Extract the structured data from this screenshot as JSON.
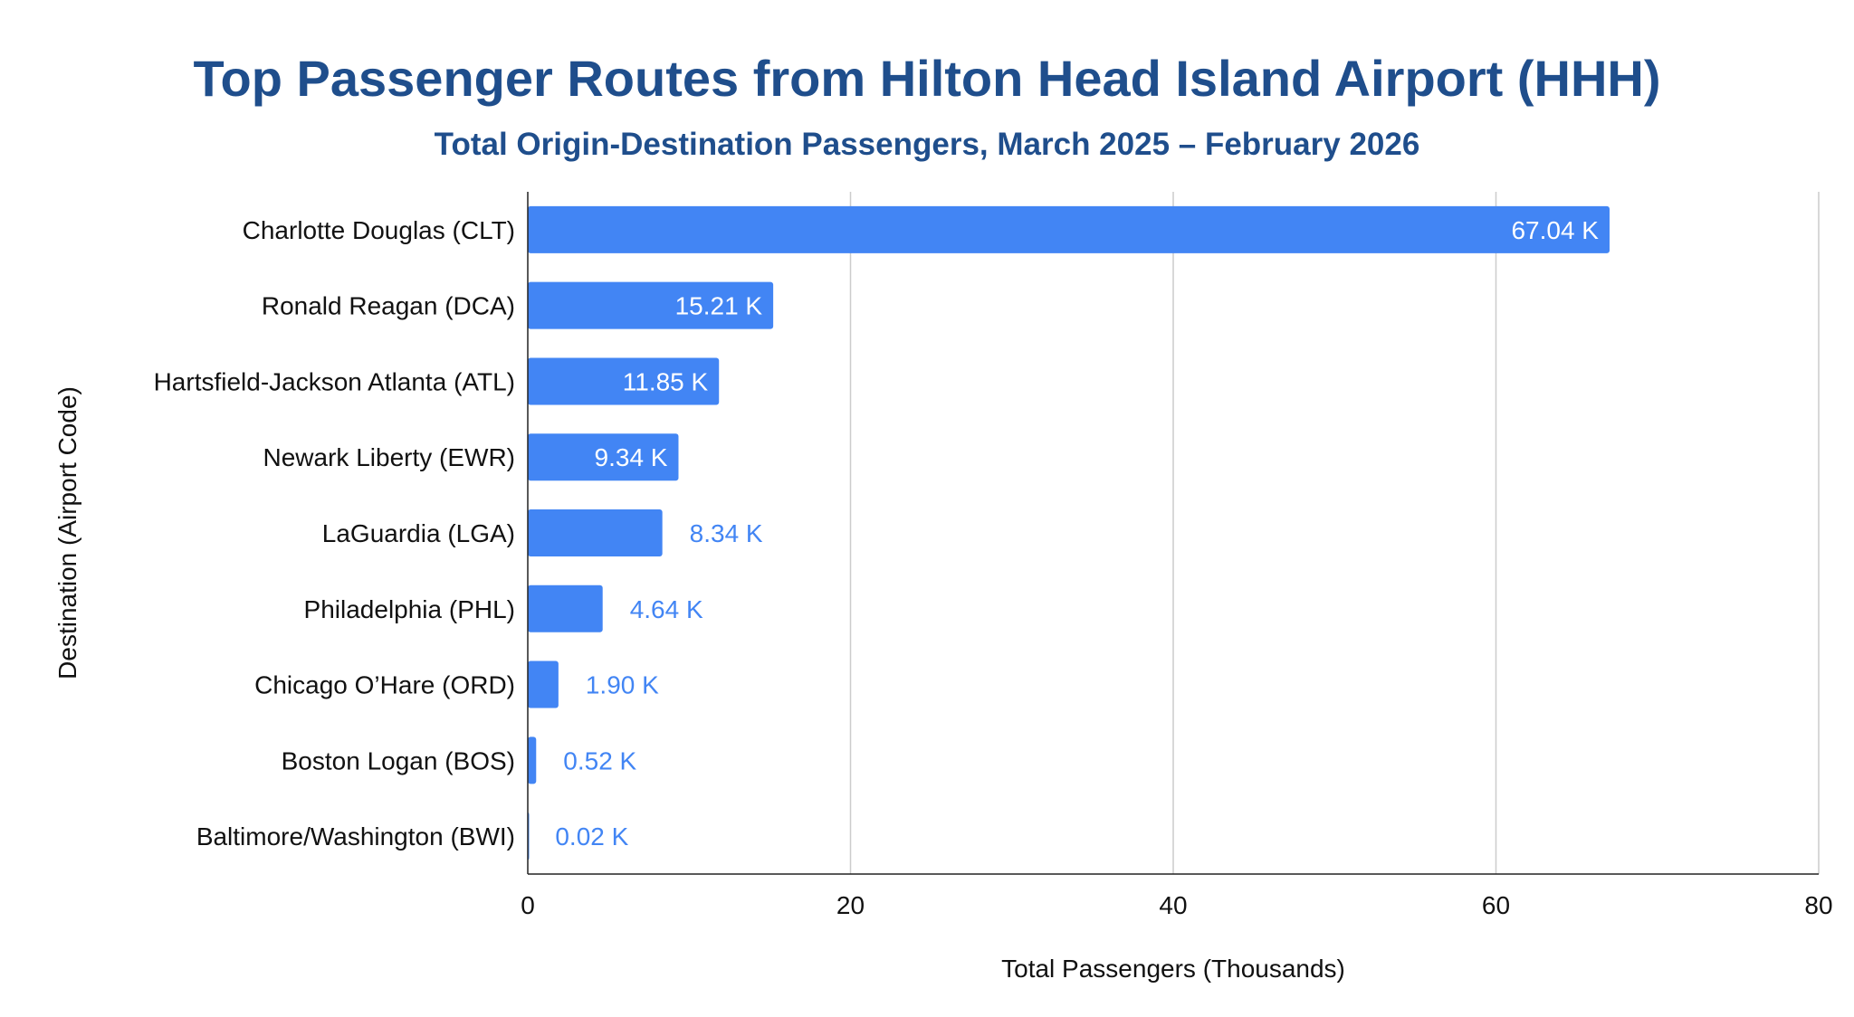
{
  "chart_data": {
    "type": "bar",
    "orientation": "horizontal",
    "title": "Top Passenger Routes from Hilton Head Island Airport (HHH)",
    "subtitle": "Total Origin-Destination Passengers, March 2025 – February 2026",
    "xlabel": "Total Passengers (Thousands)",
    "ylabel": "Destination (Airport Code)",
    "xlim": [
      0,
      80
    ],
    "xticks": [
      0,
      20,
      40,
      60,
      80
    ],
    "grid": "vertical",
    "bar_color": "#4285f4",
    "categories": [
      "Charlotte Douglas (CLT)",
      "Ronald Reagan (DCA)",
      "Hartsfield-Jackson Atlanta (ATL)",
      "Newark Liberty (EWR)",
      "LaGuardia (LGA)",
      "Philadelphia (PHL)",
      "Chicago O’Hare (ORD)",
      "Boston Logan (BOS)",
      "Baltimore/Washington (BWI)"
    ],
    "values": [
      67.04,
      15.21,
      11.85,
      9.34,
      8.34,
      4.64,
      1.9,
      0.52,
      0.02
    ],
    "data_labels": [
      "67.04 K",
      "15.21 K",
      "11.85 K",
      "9.34 K",
      "8.34 K",
      "4.64 K",
      "1.90 K",
      "0.52 K",
      "0.02 K"
    ]
  }
}
